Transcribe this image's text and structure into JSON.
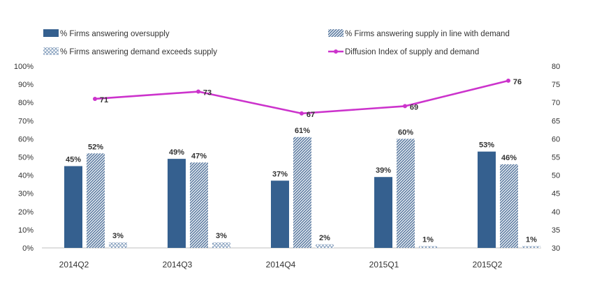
{
  "chart_data": {
    "type": "bar",
    "categories": [
      "2014Q2",
      "2014Q3",
      "2014Q4",
      "2015Q1",
      "2015Q2"
    ],
    "series": [
      {
        "name": "% Firms answering oversupply",
        "values": [
          45,
          49,
          37,
          39,
          53
        ],
        "labels": [
          "45%",
          "49%",
          "37%",
          "39%",
          "53%"
        ],
        "color": "#35608f",
        "axis": "left"
      },
      {
        "name": "% Firms answering supply in line with demand",
        "values": [
          52,
          47,
          61,
          60,
          46
        ],
        "labels": [
          "52%",
          "47%",
          "61%",
          "60%",
          "46%"
        ],
        "color": "#5a7aa0",
        "pattern": "diagonal-hatch",
        "axis": "left"
      },
      {
        "name": "% Firms answering demand exceeds supply",
        "values": [
          3,
          3,
          2,
          1,
          1
        ],
        "labels": [
          "3%",
          "3%",
          "2%",
          "1%",
          "1%"
        ],
        "color": "#7a96b8",
        "pattern": "crosshatch",
        "axis": "left"
      },
      {
        "name": "Diffusion Index of supply and demand",
        "type": "line",
        "values": [
          71,
          73,
          67,
          69,
          76
        ],
        "labels": [
          "71",
          "73",
          "67",
          "69",
          "76"
        ],
        "color": "#cc33cc",
        "axis": "right"
      }
    ],
    "y_left": {
      "ylim": [
        0,
        100
      ],
      "ticks": [
        "0%",
        "10%",
        "20%",
        "30%",
        "40%",
        "50%",
        "60%",
        "70%",
        "80%",
        "90%",
        "100%"
      ]
    },
    "y_right": {
      "ylim": [
        30,
        80
      ],
      "ticks": [
        "30",
        "35",
        "40",
        "45",
        "50",
        "55",
        "60",
        "65",
        "70",
        "75",
        "80"
      ]
    },
    "title": "",
    "xlabel": "",
    "ylabel": "",
    "grid": false,
    "legend_position": "top"
  }
}
